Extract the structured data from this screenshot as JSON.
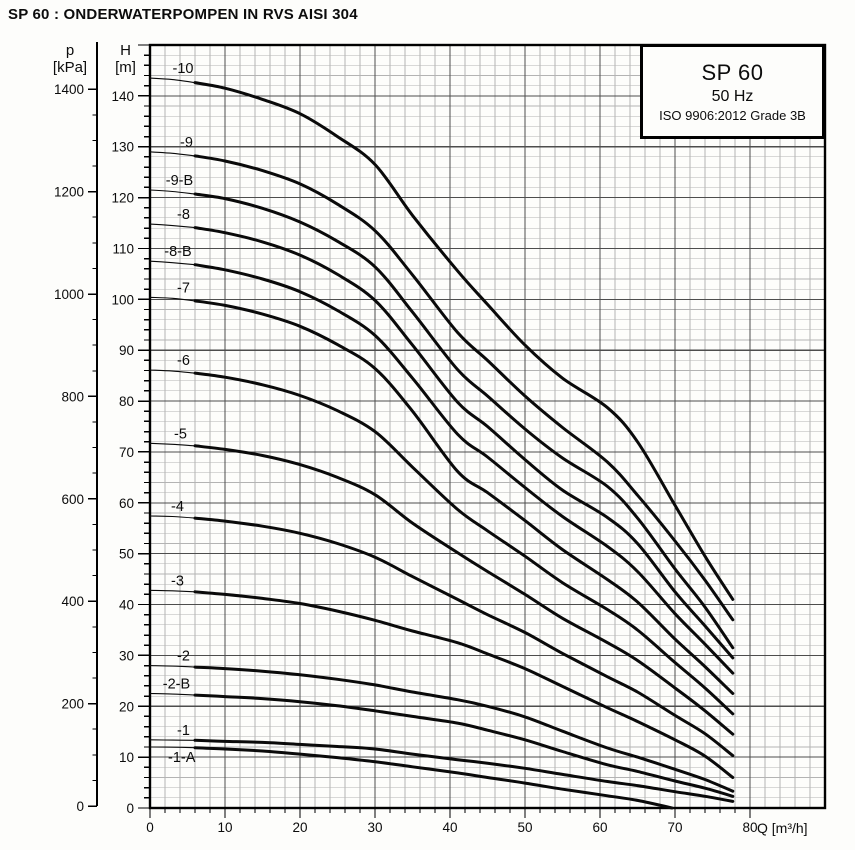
{
  "page_title": "SP 60 : ONDERWATERPOMPEN IN RVS AISI 304",
  "legend": {
    "model": "SP 60",
    "frequency": "50 Hz",
    "standard": "ISO 9906:2012 Grade 3B"
  },
  "axes": {
    "pressure": {
      "label": "p",
      "unit": "[kPa]",
      "ticks": [
        0,
        200,
        400,
        600,
        800,
        1000,
        1200,
        1400
      ],
      "minor_step": 50
    },
    "head": {
      "label": "H",
      "unit": "[m]",
      "ticks": [
        0,
        10,
        20,
        30,
        40,
        50,
        60,
        70,
        80,
        90,
        100,
        110,
        120,
        130,
        140
      ],
      "minor_step": 2,
      "max": 150
    },
    "flow": {
      "label": "Q [m³/h]",
      "ticks": [
        0,
        10,
        20,
        30,
        40,
        50,
        60,
        70,
        80
      ],
      "minor_step": 2,
      "max": 90
    }
  },
  "chart_data": {
    "type": "line",
    "title": "SP 60 pump performance curves (head vs flow)",
    "xlabel": "Q [m³/h]",
    "ylabel": "H [m]",
    "y2label": "p [kPa]",
    "xlim": [
      0,
      90
    ],
    "ylim": [
      0,
      150
    ],
    "grid": "on",
    "thick_from_q": 6,
    "series": [
      {
        "name": "-10",
        "label_q": 3.0,
        "label_dy": -5,
        "points": [
          [
            0,
            143.5
          ],
          [
            3,
            143.2
          ],
          [
            6,
            142.6
          ],
          [
            10,
            141.5
          ],
          [
            15,
            139.3
          ],
          [
            20,
            136.5
          ],
          [
            25,
            132
          ],
          [
            30,
            126.5
          ],
          [
            35,
            116.5
          ],
          [
            41,
            105.6
          ],
          [
            45,
            99
          ],
          [
            50,
            91
          ],
          [
            55,
            84.5
          ],
          [
            61,
            78.7
          ],
          [
            65,
            72
          ],
          [
            70,
            59.5
          ],
          [
            74,
            49.5
          ],
          [
            77.7,
            41
          ]
        ]
      },
      {
        "name": "-9",
        "label_q": 4.0,
        "label_dy": -5,
        "points": [
          [
            0,
            129
          ],
          [
            3,
            128.7
          ],
          [
            6,
            128.2
          ],
          [
            10,
            127.2
          ],
          [
            15,
            125.3
          ],
          [
            20,
            122.7
          ],
          [
            25,
            118.7
          ],
          [
            30,
            113.5
          ],
          [
            35,
            104.8
          ],
          [
            41,
            93.5
          ],
          [
            45,
            88
          ],
          [
            50,
            81
          ],
          [
            55,
            74.8
          ],
          [
            61,
            68
          ],
          [
            65,
            61.5
          ],
          [
            70,
            52.5
          ],
          [
            74,
            44.8
          ],
          [
            77.7,
            37
          ]
        ]
      },
      {
        "name": "-9-B",
        "label_q": 2.1,
        "label_dy": -5,
        "points": [
          [
            0,
            121.5
          ],
          [
            3,
            121.2
          ],
          [
            6,
            120.7
          ],
          [
            10,
            119.8
          ],
          [
            15,
            117.9
          ],
          [
            20,
            115.2
          ],
          [
            25,
            111.4
          ],
          [
            30,
            106.4
          ],
          [
            35,
            97.5
          ],
          [
            41,
            86.2
          ],
          [
            45,
            81
          ],
          [
            50,
            74.5
          ],
          [
            55,
            68.8
          ],
          [
            61,
            63.2
          ],
          [
            65,
            57
          ],
          [
            70,
            47
          ],
          [
            74,
            39.5
          ],
          [
            77.7,
            31.5
          ]
        ]
      },
      {
        "name": "-8",
        "label_q": 3.6,
        "label_dy": -5,
        "points": [
          [
            0,
            114.8
          ],
          [
            3,
            114.5
          ],
          [
            6,
            114.1
          ],
          [
            10,
            113.1
          ],
          [
            15,
            111.3
          ],
          [
            20,
            108.7
          ],
          [
            25,
            104.9
          ],
          [
            30,
            99.8
          ],
          [
            35,
            91
          ],
          [
            41,
            79.8
          ],
          [
            45,
            75
          ],
          [
            50,
            68.5
          ],
          [
            55,
            62.5
          ],
          [
            61,
            57.1
          ],
          [
            65,
            52
          ],
          [
            70,
            42.5
          ],
          [
            74,
            35.8
          ],
          [
            77.7,
            29.5
          ]
        ]
      },
      {
        "name": "-8-B",
        "label_q": 1.9,
        "label_dy": -5,
        "points": [
          [
            0,
            107.5
          ],
          [
            3,
            107.2
          ],
          [
            6,
            106.8
          ],
          [
            10,
            105.8
          ],
          [
            15,
            104
          ],
          [
            20,
            101.5
          ],
          [
            25,
            97.8
          ],
          [
            30,
            92.9
          ],
          [
            35,
            84.5
          ],
          [
            41,
            73.5
          ],
          [
            45,
            69
          ],
          [
            50,
            63
          ],
          [
            55,
            57.3
          ],
          [
            61,
            51.4
          ],
          [
            65,
            46.5
          ],
          [
            70,
            38.2
          ],
          [
            74,
            32.2
          ],
          [
            77.7,
            26.5
          ]
        ]
      },
      {
        "name": "-7",
        "label_q": 3.6,
        "label_dy": -5,
        "points": [
          [
            0,
            100.4
          ],
          [
            3,
            100.2
          ],
          [
            6,
            99.7
          ],
          [
            10,
            98.8
          ],
          [
            15,
            97.1
          ],
          [
            20,
            94.7
          ],
          [
            25,
            91.1
          ],
          [
            30,
            86.4
          ],
          [
            35,
            78
          ],
          [
            41,
            66.2
          ],
          [
            45,
            62
          ],
          [
            50,
            56.5
          ],
          [
            55,
            50.8
          ],
          [
            61,
            44.9
          ],
          [
            65,
            40.5
          ],
          [
            70,
            33.2
          ],
          [
            74,
            27.8
          ],
          [
            77.7,
            22.5
          ]
        ]
      },
      {
        "name": "-6",
        "label_q": 3.6,
        "label_dy": -5,
        "points": [
          [
            0,
            86.1
          ],
          [
            3,
            85.9
          ],
          [
            6,
            85.5
          ],
          [
            10,
            84.7
          ],
          [
            15,
            83.2
          ],
          [
            20,
            81.1
          ],
          [
            25,
            78.1
          ],
          [
            30,
            74
          ],
          [
            35,
            67
          ],
          [
            41,
            58.7
          ],
          [
            45,
            54.5
          ],
          [
            50,
            49.5
          ],
          [
            55,
            44.3
          ],
          [
            61,
            39
          ],
          [
            65,
            35
          ],
          [
            70,
            28.6
          ],
          [
            74,
            23.6
          ],
          [
            77.7,
            18.5
          ]
        ]
      },
      {
        "name": "-5",
        "label_q": 3.2,
        "label_dy": -5,
        "points": [
          [
            0,
            71.7
          ],
          [
            3,
            71.5
          ],
          [
            6,
            71.2
          ],
          [
            10,
            70.5
          ],
          [
            15,
            69.3
          ],
          [
            20,
            67.5
          ],
          [
            25,
            65
          ],
          [
            30,
            61.6
          ],
          [
            35,
            56
          ],
          [
            41,
            50.2
          ],
          [
            45,
            46.5
          ],
          [
            50,
            42
          ],
          [
            55,
            37.3
          ],
          [
            61,
            32.5
          ],
          [
            65,
            29
          ],
          [
            70,
            23.6
          ],
          [
            74,
            19.1
          ],
          [
            77.7,
            14.5
          ]
        ]
      },
      {
        "name": "-4",
        "label_q": 2.8,
        "label_dy": -5,
        "points": [
          [
            0,
            57.4
          ],
          [
            3,
            57.3
          ],
          [
            6,
            57
          ],
          [
            10,
            56.4
          ],
          [
            15,
            55.4
          ],
          [
            20,
            54
          ],
          [
            25,
            52
          ],
          [
            30,
            49.3
          ],
          [
            35,
            45.5
          ],
          [
            41,
            41
          ],
          [
            45,
            38
          ],
          [
            50,
            34.5
          ],
          [
            55,
            30.4
          ],
          [
            61,
            25.8
          ],
          [
            65,
            22.8
          ],
          [
            70,
            18.2
          ],
          [
            74,
            14.6
          ],
          [
            77.7,
            10.3
          ]
        ]
      },
      {
        "name": "-3",
        "label_q": 2.8,
        "label_dy": -5,
        "points": [
          [
            0,
            42.8
          ],
          [
            3,
            42.7
          ],
          [
            6,
            42.5
          ],
          [
            10,
            42
          ],
          [
            15,
            41.2
          ],
          [
            20,
            40.2
          ],
          [
            25,
            38.7
          ],
          [
            30,
            36.9
          ],
          [
            35,
            34.8
          ],
          [
            41,
            32.5
          ],
          [
            45,
            30.3
          ],
          [
            50,
            27.4
          ],
          [
            55,
            23.9
          ],
          [
            61,
            19.7
          ],
          [
            65,
            17
          ],
          [
            70,
            13.4
          ],
          [
            74,
            10.2
          ],
          [
            77.7,
            6
          ]
        ]
      },
      {
        "name": "-2",
        "label_q": 3.6,
        "label_dy": -5,
        "points": [
          [
            0,
            28
          ],
          [
            3,
            27.9
          ],
          [
            6,
            27.7
          ],
          [
            10,
            27.4
          ],
          [
            15,
            26.9
          ],
          [
            20,
            26.2
          ],
          [
            25,
            25.3
          ],
          [
            30,
            24.2
          ],
          [
            35,
            22.8
          ],
          [
            41,
            21.3
          ],
          [
            45,
            20
          ],
          [
            50,
            17.9
          ],
          [
            55,
            15.1
          ],
          [
            61,
            11.8
          ],
          [
            65,
            10
          ],
          [
            70,
            7.6
          ],
          [
            74,
            5.6
          ],
          [
            77.7,
            3.3
          ]
        ]
      },
      {
        "name": "-2-B",
        "label_q": 1.7,
        "label_dy": -5,
        "points": [
          [
            0,
            22.5
          ],
          [
            3,
            22.4
          ],
          [
            6,
            22.2
          ],
          [
            10,
            21.9
          ],
          [
            15,
            21.5
          ],
          [
            20,
            20.9
          ],
          [
            25,
            20.1
          ],
          [
            30,
            19.1
          ],
          [
            35,
            18
          ],
          [
            41,
            16.7
          ],
          [
            45,
            15.3
          ],
          [
            50,
            13.4
          ],
          [
            55,
            11.1
          ],
          [
            61,
            8.5
          ],
          [
            65,
            7.2
          ],
          [
            70,
            5.3
          ],
          [
            74,
            3.9
          ],
          [
            77.7,
            2.3
          ]
        ]
      },
      {
        "name": "-1",
        "label_q": 3.6,
        "label_dy": -5,
        "points": [
          [
            0,
            13.4
          ],
          [
            3,
            13.35
          ],
          [
            6,
            13.3
          ],
          [
            10,
            13.1
          ],
          [
            15,
            12.9
          ],
          [
            20,
            12.5
          ],
          [
            25,
            12.1
          ],
          [
            30,
            11.6
          ],
          [
            35,
            10.6
          ],
          [
            41,
            9.5
          ],
          [
            45,
            8.8
          ],
          [
            50,
            7.8
          ],
          [
            55,
            6.6
          ],
          [
            61,
            5.2
          ],
          [
            65,
            4.4
          ],
          [
            70,
            3.2
          ],
          [
            74,
            2.3
          ],
          [
            77.7,
            1.3
          ]
        ]
      },
      {
        "name": "-1-A",
        "label_q": 2.4,
        "label_dy": 15,
        "points": [
          [
            0,
            12
          ],
          [
            3,
            11.95
          ],
          [
            6,
            11.85
          ],
          [
            10,
            11.6
          ],
          [
            15,
            11.2
          ],
          [
            20,
            10.6
          ],
          [
            25,
            9.9
          ],
          [
            30,
            9.1
          ],
          [
            35,
            8.1
          ],
          [
            41,
            6.9
          ],
          [
            45,
            6
          ],
          [
            50,
            4.9
          ],
          [
            55,
            3.7
          ],
          [
            61,
            2.4
          ],
          [
            65,
            1.5
          ],
          [
            69.6,
            0
          ]
        ]
      }
    ]
  }
}
